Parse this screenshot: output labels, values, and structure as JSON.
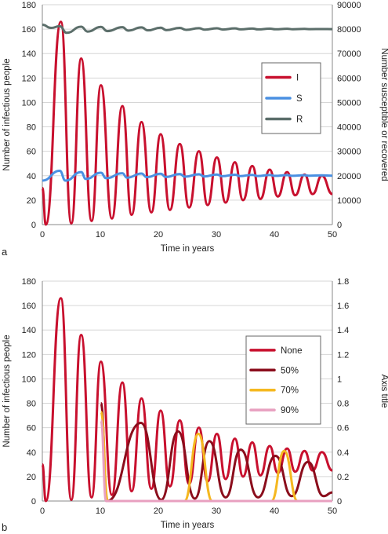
{
  "chart_data": [
    {
      "panel_label": "a",
      "type": "line",
      "xlabel": "Time in years",
      "ylabel": "Number of infectious people",
      "y2label": "Number susceptible or recovered",
      "xlim": [
        0,
        50
      ],
      "ylim": [
        0,
        180
      ],
      "y2lim": [
        0,
        90000
      ],
      "xticks": [
        "0",
        "10",
        "20",
        "30",
        "40",
        "50"
      ],
      "yticks": [
        "0",
        "20",
        "40",
        "60",
        "80",
        "100",
        "120",
        "140",
        "160",
        "180"
      ],
      "y2ticks": [
        "0",
        "10000",
        "20000",
        "30000",
        "40000",
        "50000",
        "60000",
        "70000",
        "80000",
        "90000"
      ],
      "grid": true,
      "legend": "right",
      "series": [
        {
          "name": "I",
          "axis": "left",
          "color": "#c8102e",
          "kind": "spikes",
          "baseline": 30,
          "peaks": [
            [
              3.2,
              166
            ],
            [
              6.7,
              136
            ],
            [
              10.1,
              114
            ],
            [
              13.8,
              97
            ],
            [
              17.1,
              84
            ],
            [
              20.4,
              74
            ],
            [
              23.7,
              66
            ],
            [
              27.0,
              60
            ],
            [
              30.1,
              55
            ],
            [
              33.2,
              51
            ],
            [
              36.2,
              48
            ],
            [
              39.2,
              45
            ],
            [
              42.2,
              43
            ],
            [
              45.2,
              41
            ],
            [
              48.2,
              40
            ]
          ],
          "troughs": [
            [
              0.6,
              0
            ],
            [
              5.0,
              1
            ],
            [
              8.5,
              3
            ],
            [
              12.0,
              5
            ],
            [
              15.4,
              8
            ],
            [
              18.8,
              10
            ],
            [
              22.0,
              12
            ],
            [
              25.3,
              14
            ],
            [
              28.5,
              16
            ],
            [
              31.6,
              18
            ],
            [
              34.6,
              20
            ],
            [
              37.6,
              21
            ],
            [
              40.6,
              23
            ],
            [
              43.6,
              24
            ],
            [
              46.6,
              25
            ],
            [
              50,
              25
            ]
          ]
        },
        {
          "name": "S",
          "axis": "right",
          "color": "#4a90e2",
          "kind": "wave",
          "x": [
            0,
            3.0,
            4.0,
            6.7,
            7.5,
            10.1,
            11.0,
            13.8,
            14.6,
            17.1,
            18.0,
            20.4,
            21.3,
            23.7,
            24.6,
            27.0,
            27.9,
            30.1,
            31.0,
            33.2,
            34.1,
            36.2,
            37.1,
            39.2,
            40.1,
            42.2,
            43.1,
            45.2,
            46.1,
            48.2,
            50
          ],
          "y": [
            18000,
            22000,
            18000,
            21500,
            18700,
            21200,
            19000,
            21000,
            19200,
            20900,
            19400,
            20800,
            19500,
            20700,
            19600,
            20600,
            19700,
            20500,
            19800,
            20400,
            19850,
            20350,
            19900,
            20300,
            19950,
            20250,
            19950,
            20200,
            20000,
            20150,
            20000
          ]
        },
        {
          "name": "R",
          "axis": "right",
          "color": "#5b6e6a",
          "kind": "wave",
          "x": [
            0,
            1.5,
            3.0,
            4.2,
            6.7,
            7.8,
            10.1,
            11.2,
            13.8,
            14.8,
            17.1,
            18.2,
            20.4,
            21.4,
            23.7,
            24.8,
            27.0,
            28.0,
            30.1,
            31.1,
            33.2,
            34.2,
            36.2,
            37.2,
            39.2,
            40.2,
            42.2,
            43.2,
            45.2,
            46.2,
            48.2,
            50
          ],
          "y": [
            81800,
            80500,
            81200,
            78500,
            81000,
            79000,
            80900,
            79200,
            80800,
            79400,
            80700,
            79500,
            80600,
            79600,
            80500,
            79700,
            80400,
            79800,
            80350,
            79850,
            80300,
            79900,
            80250,
            79900,
            80200,
            79950,
            80150,
            79950,
            80100,
            80000,
            80050,
            80000
          ]
        }
      ]
    },
    {
      "panel_label": "b",
      "type": "line",
      "xlabel": "Time in years",
      "ylabel": "Number of infectious people",
      "y2label": "Axis title",
      "xlim": [
        0,
        50
      ],
      "ylim": [
        0,
        180
      ],
      "y2lim": [
        0,
        1.8
      ],
      "xticks": [
        "0",
        "10",
        "20",
        "30",
        "40",
        "50"
      ],
      "yticks": [
        "0",
        "20",
        "40",
        "60",
        "80",
        "100",
        "120",
        "140",
        "160",
        "180"
      ],
      "y2ticks": [
        "0",
        "0.2",
        "0.4",
        "0.6",
        "0.8",
        "1",
        "1.2",
        "1.4",
        "1.6",
        "1.8"
      ],
      "grid": true,
      "legend": "right",
      "series": [
        {
          "name": "None",
          "color": "#c8102e",
          "kind": "spikes",
          "baseline": 30,
          "peaks": [
            [
              3.2,
              166
            ],
            [
              6.7,
              136
            ],
            [
              10.1,
              114
            ],
            [
              13.8,
              97
            ],
            [
              17.1,
              84
            ],
            [
              20.4,
              74
            ],
            [
              23.7,
              66
            ],
            [
              27.0,
              60
            ],
            [
              30.1,
              55
            ],
            [
              33.2,
              51
            ],
            [
              36.2,
              48
            ],
            [
              39.2,
              45
            ],
            [
              42.2,
              43
            ],
            [
              45.2,
              41
            ],
            [
              48.2,
              40
            ]
          ],
          "troughs": [
            [
              0.6,
              0
            ],
            [
              5.0,
              1
            ],
            [
              8.5,
              3
            ],
            [
              12.0,
              5
            ],
            [
              15.4,
              8
            ],
            [
              18.8,
              10
            ],
            [
              22.0,
              12
            ],
            [
              25.3,
              14
            ],
            [
              28.5,
              16
            ],
            [
              31.6,
              18
            ],
            [
              34.6,
              20
            ],
            [
              37.6,
              21
            ],
            [
              40.6,
              23
            ],
            [
              43.6,
              24
            ],
            [
              46.6,
              25
            ],
            [
              50,
              25
            ]
          ]
        },
        {
          "name": "50%",
          "color": "#8b0d1c",
          "kind": "spikes",
          "start": 10.1,
          "baseline": 80,
          "peaks": [
            [
              10.1,
              80
            ],
            [
              17.0,
              64
            ],
            [
              23.4,
              57
            ],
            [
              28.8,
              49
            ],
            [
              34.2,
              42
            ],
            [
              40.2,
              37
            ],
            [
              45.8,
              32
            ]
          ],
          "troughs": [
            [
              11.2,
              0
            ],
            [
              20.5,
              1
            ],
            [
              26.3,
              2
            ],
            [
              31.6,
              3
            ],
            [
              37.2,
              3
            ],
            [
              43.0,
              4
            ],
            [
              48.5,
              4
            ],
            [
              50,
              7
            ]
          ]
        },
        {
          "name": "70%",
          "color": "#f5b820",
          "kind": "spikes",
          "start": 10.1,
          "baseline": 73,
          "peaks": [
            [
              10.1,
              73
            ],
            [
              26.9,
              55
            ],
            [
              41.7,
              41
            ]
          ],
          "troughs": [
            [
              11.3,
              0
            ],
            [
              24.5,
              0
            ],
            [
              29.3,
              0
            ],
            [
              39.5,
              0
            ],
            [
              44.0,
              0
            ],
            [
              50,
              0
            ]
          ]
        },
        {
          "name": "90%",
          "color": "#e8a0c0",
          "kind": "spikes",
          "start": 10.1,
          "baseline": 66,
          "peaks": [
            [
              10.1,
              66
            ]
          ],
          "troughs": [
            [
              11.0,
              0
            ],
            [
              50,
              0
            ]
          ]
        }
      ]
    }
  ]
}
